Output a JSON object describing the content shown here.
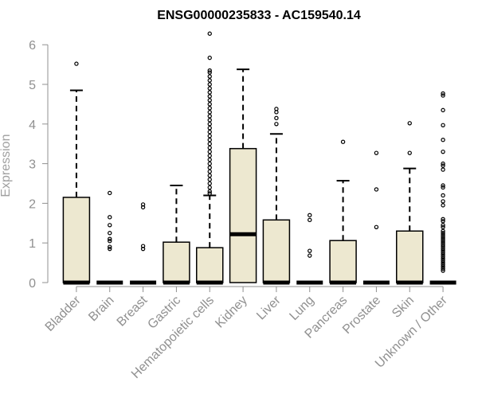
{
  "chart_data": {
    "type": "boxplot",
    "title": "ENSG00000235833 - AC159540.14",
    "ylabel": "Expression",
    "xlabel": "",
    "ylim": [
      0,
      6.3
    ],
    "yticks": [
      0,
      1,
      2,
      3,
      4,
      5,
      6
    ],
    "grid": false,
    "box_fill": "#ede8d0",
    "stroke_color": "#000000",
    "axis_color": "#909090",
    "categories": [
      "Bladder",
      "Brain",
      "Breast",
      "Gastric",
      "Hematopoietic cells",
      "Kidney",
      "Liver",
      "Lung",
      "Pancreas",
      "Prostate",
      "Skin",
      "Unknown / Other"
    ],
    "boxes": [
      {
        "q1": 0,
        "median": 0,
        "q3": 2.15,
        "whisker_low": 0,
        "whisker_high": 4.85,
        "outliers": [
          5.52
        ]
      },
      {
        "q1": 0,
        "median": 0,
        "q3": 0,
        "whisker_low": 0,
        "whisker_high": 0,
        "outliers": [
          2.26,
          1.65,
          1.45,
          1.25,
          1.1,
          1.05,
          0.9,
          0.85
        ]
      },
      {
        "q1": 0,
        "median": 0,
        "q3": 0,
        "whisker_low": 0,
        "whisker_high": 0,
        "outliers": [
          1.97,
          1.9,
          0.92,
          0.85
        ]
      },
      {
        "q1": 0,
        "median": 0,
        "q3": 1.02,
        "whisker_low": 0,
        "whisker_high": 2.45,
        "outliers": []
      },
      {
        "q1": 0,
        "median": 0,
        "q3": 0.88,
        "whisker_low": 0,
        "whisker_high": 2.2,
        "outliers": [
          6.28,
          5.67,
          5.35,
          5.3,
          5.2,
          5.1,
          5.0,
          4.9,
          4.8,
          4.7,
          4.6,
          4.5,
          4.4,
          4.3,
          4.2,
          4.1,
          4.0,
          3.9,
          3.8,
          3.7,
          3.6,
          3.5,
          3.4,
          3.3,
          3.2,
          3.1,
          3.0,
          2.9,
          2.8,
          2.7,
          2.6,
          2.5,
          2.4,
          2.3,
          2.25
        ]
      },
      {
        "q1": 0,
        "median": 1.22,
        "q3": 3.38,
        "whisker_low": 0,
        "whisker_high": 5.38,
        "outliers": []
      },
      {
        "q1": 0,
        "median": 0,
        "q3": 1.58,
        "whisker_low": 0,
        "whisker_high": 3.75,
        "outliers": [
          4.38,
          4.3,
          4.15,
          4.0
        ]
      },
      {
        "q1": 0,
        "median": 0,
        "q3": 0,
        "whisker_low": 0,
        "whisker_high": 0,
        "outliers": [
          1.7,
          1.58,
          0.8,
          0.68
        ]
      },
      {
        "q1": 0,
        "median": 0,
        "q3": 1.06,
        "whisker_low": 0,
        "whisker_high": 2.57,
        "outliers": [
          3.55
        ]
      },
      {
        "q1": 0,
        "median": 0,
        "q3": 0,
        "whisker_low": 0,
        "whisker_high": 0,
        "outliers": [
          3.27,
          2.35,
          1.4
        ]
      },
      {
        "q1": 0,
        "median": 0,
        "q3": 1.3,
        "whisker_low": 0,
        "whisker_high": 2.88,
        "outliers": [
          4.02,
          3.27
        ]
      },
      {
        "q1": 0,
        "median": 0,
        "q3": 0,
        "whisker_low": 0,
        "whisker_high": 0,
        "outliers": [
          4.77,
          4.72,
          4.35,
          3.97,
          3.6,
          3.3,
          3.0,
          2.95,
          2.85,
          2.45,
          2.4,
          2.2,
          2.05,
          1.95,
          1.6,
          1.55,
          1.45,
          1.4,
          1.3,
          1.25,
          1.2,
          1.15,
          1.1,
          1.05,
          1.0,
          0.95,
          0.9,
          0.85,
          0.8,
          0.75,
          0.7,
          0.65,
          0.6,
          0.55,
          0.5,
          0.45,
          0.4,
          0.35,
          0.3
        ]
      }
    ]
  }
}
